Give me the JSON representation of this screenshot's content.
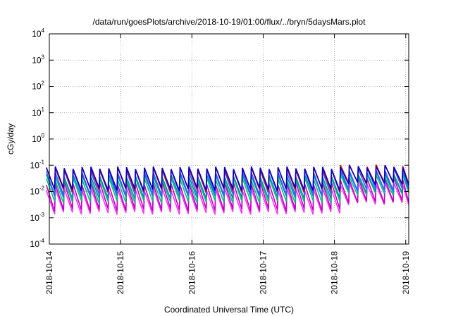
{
  "chart_data": {
    "type": "line",
    "title": "/data/run/goesPlots/archive/2018-10-19/01:00/flux/../bryn/5daysMars.plot",
    "xlabel": "Coordinated Universal Time (UTC)",
    "ylabel": "cGy/day",
    "yscale": "log",
    "ylim": [
      0.0001,
      10000
    ],
    "y_ticks": [
      {
        "base": "10",
        "exp": "4"
      },
      {
        "base": "10",
        "exp": "3"
      },
      {
        "base": "10",
        "exp": "2"
      },
      {
        "base": "10",
        "exp": "1"
      },
      {
        "base": "10",
        "exp": "0"
      },
      {
        "base": "10",
        "exp": "-1"
      },
      {
        "base": "10",
        "exp": "-2"
      },
      {
        "base": "10",
        "exp": "-3"
      },
      {
        "base": "10",
        "exp": "-4"
      }
    ],
    "x_ticks": [
      "2018-10-14",
      "2018-10-15",
      "2018-10-16",
      "2018-10-17",
      "2018-10-18",
      "2018-10-19"
    ],
    "xlim": [
      "2018-10-14T00:00",
      "2018-10-19T01:00"
    ],
    "grid": true,
    "sawtooth_period_hours": 3,
    "series": [
      {
        "color": "#0000c8",
        "peak_values": [
          0.08,
          0.09
        ],
        "trough_values": [
          0.012,
          0.02
        ]
      },
      {
        "color": "#e00000",
        "peak_values": [
          0.075,
          0.095
        ],
        "trough_values": [
          0.011,
          0.02
        ]
      },
      {
        "color": "#0090a0",
        "peak_values": [
          0.04,
          0.05
        ],
        "trough_values": [
          0.006,
          0.01
        ]
      },
      {
        "color": "#00c080",
        "peak_values": [
          0.03,
          0.04
        ],
        "trough_values": [
          0.004,
          0.008
        ]
      },
      {
        "color": "#3060ff",
        "peak_values": [
          0.06,
          0.07
        ],
        "trough_values": [
          0.008,
          0.012
        ]
      },
      {
        "color": "#c000c0",
        "peak_values": [
          0.02,
          0.03
        ],
        "trough_values": [
          0.002,
          0.004
        ]
      },
      {
        "color": "#ff30ff",
        "peak_values": [
          0.012,
          0.02
        ],
        "trough_values": [
          0.0015,
          0.0035
        ]
      }
    ]
  }
}
